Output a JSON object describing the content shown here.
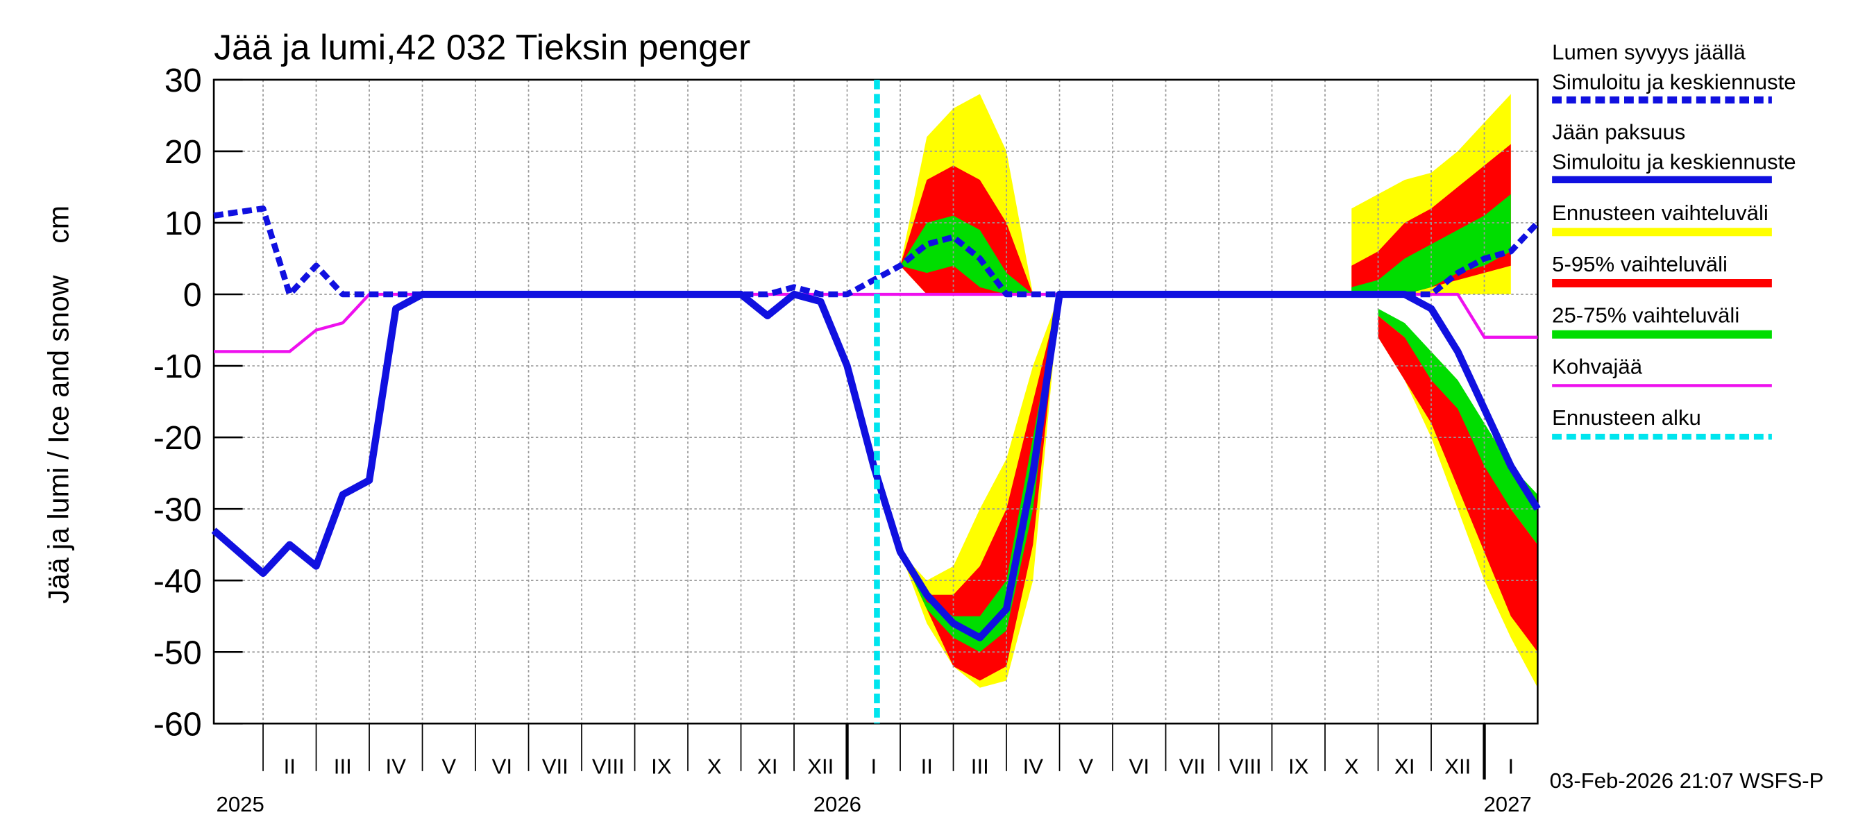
{
  "chart_data": {
    "type": "line",
    "title": "Jää ja lumi,42 032 Tieksin penger",
    "ylabel": "Jää ja lumi / Ice and snow    cm",
    "footer": "03-Feb-2026 21:07 WSFS-P",
    "years": [
      "2025",
      "2026",
      "2027"
    ],
    "categories": [
      null,
      null,
      "II",
      null,
      "III",
      null,
      "IV",
      null,
      "V",
      null,
      "VI",
      null,
      "VII",
      null,
      "VIII",
      null,
      "IX",
      null,
      "X",
      null,
      "XI",
      null,
      "XII",
      null,
      "I",
      null,
      "II",
      null,
      "III",
      null,
      "IV",
      null,
      "V",
      null,
      "VI",
      null,
      "VII",
      null,
      "VIII",
      null,
      "IX",
      null,
      "X",
      null,
      "XI",
      null,
      "XII",
      null,
      "I",
      null
    ],
    "ylim": [
      -60,
      30
    ],
    "yticks": [
      -60,
      -50,
      -40,
      -30,
      -20,
      -10,
      0,
      10,
      20,
      30
    ],
    "grid": true,
    "forecast_label": "Ennusteen alku",
    "forecast_color": "#00e5ee",
    "series": [
      {
        "name": "Lumen syvyys jäällä",
        "name2": "Simuloitu ja keskiennuste",
        "color": "#1010e0",
        "dashed": true,
        "values": [
          11,
          12,
          0,
          4,
          0,
          0,
          0,
          0,
          0,
          0,
          0,
          0,
          0,
          0,
          0,
          0,
          0,
          0,
          0,
          0,
          0,
          1,
          0,
          0,
          2,
          4,
          7,
          8,
          5,
          0,
          0,
          0,
          0,
          0,
          0,
          0,
          0,
          0,
          0,
          0,
          0,
          0,
          0,
          0,
          0,
          0,
          3,
          5,
          6,
          10
        ]
      },
      {
        "name": "Jään paksuus",
        "name2": "Simuloitu ja keskiennuste",
        "color": "#1010e0",
        "dashed": false,
        "values": [
          -33,
          -39,
          -35,
          -38,
          -28,
          -26,
          -2,
          0,
          0,
          0,
          0,
          0,
          0,
          0,
          0,
          0,
          0,
          0,
          0,
          0,
          -3,
          0,
          -1,
          -10,
          -24,
          -36,
          -42,
          -46,
          -48,
          -44,
          -25,
          0,
          0,
          0,
          0,
          0,
          0,
          0,
          0,
          0,
          0,
          0,
          0,
          0,
          0,
          -2,
          -8,
          -16,
          -24,
          -30
        ]
      },
      {
        "name": "Kohvajää",
        "color": "#ee10ee",
        "dashed": false,
        "values": [
          -8,
          -8,
          -8,
          -5,
          -4,
          0,
          0,
          0,
          0,
          0,
          0,
          0,
          0,
          0,
          0,
          0,
          0,
          0,
          0,
          0,
          0,
          0,
          0,
          0,
          0,
          0,
          0,
          0,
          0,
          0,
          0,
          0,
          0,
          0,
          0,
          0,
          0,
          0,
          0,
          0,
          0,
          0,
          0,
          0,
          0,
          0,
          0,
          -6,
          -6,
          -6
        ]
      }
    ],
    "bands": [
      {
        "name": "Ennusteen vaihteluväli",
        "color": "#ffff00",
        "snow_upper": [
          null,
          null,
          null,
          null,
          null,
          null,
          null,
          null,
          null,
          null,
          null,
          null,
          null,
          null,
          null,
          null,
          null,
          null,
          null,
          null,
          null,
          null,
          null,
          null,
          null,
          4,
          22,
          26,
          28,
          20,
          0,
          null,
          null,
          null,
          null,
          null,
          null,
          null,
          null,
          null,
          null,
          null,
          12,
          14,
          16,
          17,
          20,
          24,
          28,
          null
        ],
        "snow_lower": [
          null,
          null,
          null,
          null,
          null,
          null,
          null,
          null,
          null,
          null,
          null,
          null,
          null,
          null,
          null,
          null,
          null,
          null,
          null,
          null,
          null,
          null,
          null,
          null,
          null,
          4,
          0,
          0,
          0,
          0,
          0,
          null,
          null,
          null,
          null,
          null,
          null,
          null,
          null,
          null,
          null,
          null,
          0,
          0,
          0,
          0,
          0,
          0,
          0,
          null
        ],
        "ice_upper": [
          null,
          null,
          null,
          null,
          null,
          null,
          null,
          null,
          null,
          null,
          null,
          null,
          null,
          null,
          null,
          null,
          null,
          null,
          null,
          null,
          null,
          null,
          null,
          null,
          null,
          -36,
          -40,
          -38,
          -30,
          -23,
          -10,
          0,
          null,
          null,
          null,
          null,
          null,
          null,
          null,
          null,
          null,
          null,
          null,
          -3,
          -5,
          -8,
          -12,
          -20,
          -28,
          -32
        ],
        "ice_lower": [
          null,
          null,
          null,
          null,
          null,
          null,
          null,
          null,
          null,
          null,
          null,
          null,
          null,
          null,
          null,
          null,
          null,
          null,
          null,
          null,
          null,
          null,
          null,
          null,
          null,
          -36,
          -46,
          -52,
          -55,
          -54,
          -40,
          0,
          null,
          null,
          null,
          null,
          null,
          null,
          null,
          null,
          null,
          null,
          null,
          -6,
          -12,
          -20,
          -30,
          -40,
          -48,
          -55
        ]
      },
      {
        "name": "5-95% vaihteluväli",
        "color": "#ff0000",
        "snow_upper": [
          null,
          null,
          null,
          null,
          null,
          null,
          null,
          null,
          null,
          null,
          null,
          null,
          null,
          null,
          null,
          null,
          null,
          null,
          null,
          null,
          null,
          null,
          null,
          null,
          null,
          4,
          16,
          18,
          16,
          10,
          0,
          null,
          null,
          null,
          null,
          null,
          null,
          null,
          null,
          null,
          null,
          null,
          4,
          6,
          10,
          12,
          15,
          18,
          21,
          null
        ],
        "snow_lower": [
          null,
          null,
          null,
          null,
          null,
          null,
          null,
          null,
          null,
          null,
          null,
          null,
          null,
          null,
          null,
          null,
          null,
          null,
          null,
          null,
          null,
          null,
          null,
          null,
          null,
          4,
          0,
          0,
          0,
          0,
          0,
          null,
          null,
          null,
          null,
          null,
          null,
          null,
          null,
          null,
          null,
          null,
          0,
          0,
          0,
          1,
          2,
          3,
          4,
          null
        ],
        "ice_upper": [
          null,
          null,
          null,
          null,
          null,
          null,
          null,
          null,
          null,
          null,
          null,
          null,
          null,
          null,
          null,
          null,
          null,
          null,
          null,
          null,
          null,
          null,
          null,
          null,
          null,
          -36,
          -42,
          -42,
          -38,
          -30,
          -15,
          0,
          null,
          null,
          null,
          null,
          null,
          null,
          null,
          null,
          null,
          null,
          null,
          -3,
          -6,
          -10,
          -15,
          -22,
          -30,
          -35
        ],
        "ice_lower": [
          null,
          null,
          null,
          null,
          null,
          null,
          null,
          null,
          null,
          null,
          null,
          null,
          null,
          null,
          null,
          null,
          null,
          null,
          null,
          null,
          null,
          null,
          null,
          null,
          null,
          -36,
          -44,
          -52,
          -54,
          -52,
          -35,
          0,
          null,
          null,
          null,
          null,
          null,
          null,
          null,
          null,
          null,
          null,
          null,
          -6,
          -12,
          -18,
          -27,
          -36,
          -45,
          -50
        ]
      },
      {
        "name": "25-75% vaihteluväli",
        "color": "#00dd00",
        "snow_upper": [
          null,
          null,
          null,
          null,
          null,
          null,
          null,
          null,
          null,
          null,
          null,
          null,
          null,
          null,
          null,
          null,
          null,
          null,
          null,
          null,
          null,
          null,
          null,
          null,
          null,
          4,
          10,
          11,
          9,
          3,
          0,
          null,
          null,
          null,
          null,
          null,
          null,
          null,
          null,
          null,
          null,
          null,
          1,
          2,
          5,
          7,
          9,
          11,
          14,
          null
        ],
        "snow_lower": [
          null,
          null,
          null,
          null,
          null,
          null,
          null,
          null,
          null,
          null,
          null,
          null,
          null,
          null,
          null,
          null,
          null,
          null,
          null,
          null,
          null,
          null,
          null,
          null,
          null,
          4,
          3,
          4,
          1,
          0,
          0,
          null,
          null,
          null,
          null,
          null,
          null,
          null,
          null,
          null,
          null,
          null,
          0,
          0,
          0,
          1,
          3,
          4,
          6,
          null
        ],
        "ice_upper": [
          null,
          null,
          null,
          null,
          null,
          null,
          null,
          null,
          null,
          null,
          null,
          null,
          null,
          null,
          null,
          null,
          null,
          null,
          null,
          null,
          null,
          null,
          null,
          null,
          null,
          -36,
          -43,
          -45,
          -45,
          -40,
          -20,
          0,
          null,
          null,
          null,
          null,
          null,
          null,
          null,
          null,
          null,
          null,
          null,
          -2,
          -4,
          -8,
          -12,
          -18,
          -24,
          -28
        ],
        "ice_lower": [
          null,
          null,
          null,
          null,
          null,
          null,
          null,
          null,
          null,
          null,
          null,
          null,
          null,
          null,
          null,
          null,
          null,
          null,
          null,
          null,
          null,
          null,
          null,
          null,
          null,
          -36,
          -44,
          -48,
          -50,
          -47,
          -30,
          0,
          null,
          null,
          null,
          null,
          null,
          null,
          null,
          null,
          null,
          null,
          null,
          -3,
          -6,
          -12,
          -16,
          -24,
          -30,
          -35
        ]
      }
    ]
  }
}
